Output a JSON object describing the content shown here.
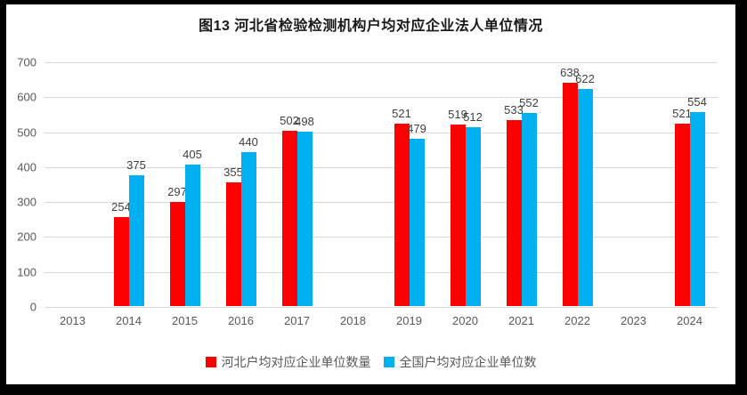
{
  "title": "图13 河北省检验检测机构户均对应企业法人单位情况",
  "colors": {
    "hebei_series": "#FF0000",
    "national_series": "#00B0F0",
    "gridline": "#D9D9D9",
    "axis_text": "#595959",
    "data_label_text": "#3F3F3F",
    "frame_border": "#000000",
    "background": "#FFFFFF"
  },
  "chart_data": {
    "type": "bar",
    "title": "图13 河北省检验检测机构户均对应企业法人单位情况",
    "categories": [
      "2013",
      "2014",
      "2015",
      "2016",
      "2017",
      "2018",
      "2019",
      "2020",
      "2021",
      "2022",
      "2023",
      "2024"
    ],
    "series": [
      {
        "name": "河北户均对应企业单位数量",
        "color_key": "hebei_series",
        "values": [
          null,
          254,
          297,
          355,
          502,
          null,
          521,
          519,
          533,
          638,
          null,
          521
        ]
      },
      {
        "name": "全国户均对应企业单位数",
        "color_key": "national_series",
        "values": [
          null,
          375,
          405,
          440,
          498,
          null,
          479,
          512,
          552,
          622,
          null,
          554
        ]
      }
    ],
    "ylim": [
      0,
      700
    ],
    "ytick_step": 100,
    "yticks": [
      "0",
      "100",
      "200",
      "300",
      "400",
      "500",
      "600",
      "700"
    ],
    "grid": true,
    "data_labels": true,
    "legend_position": "bottom"
  }
}
